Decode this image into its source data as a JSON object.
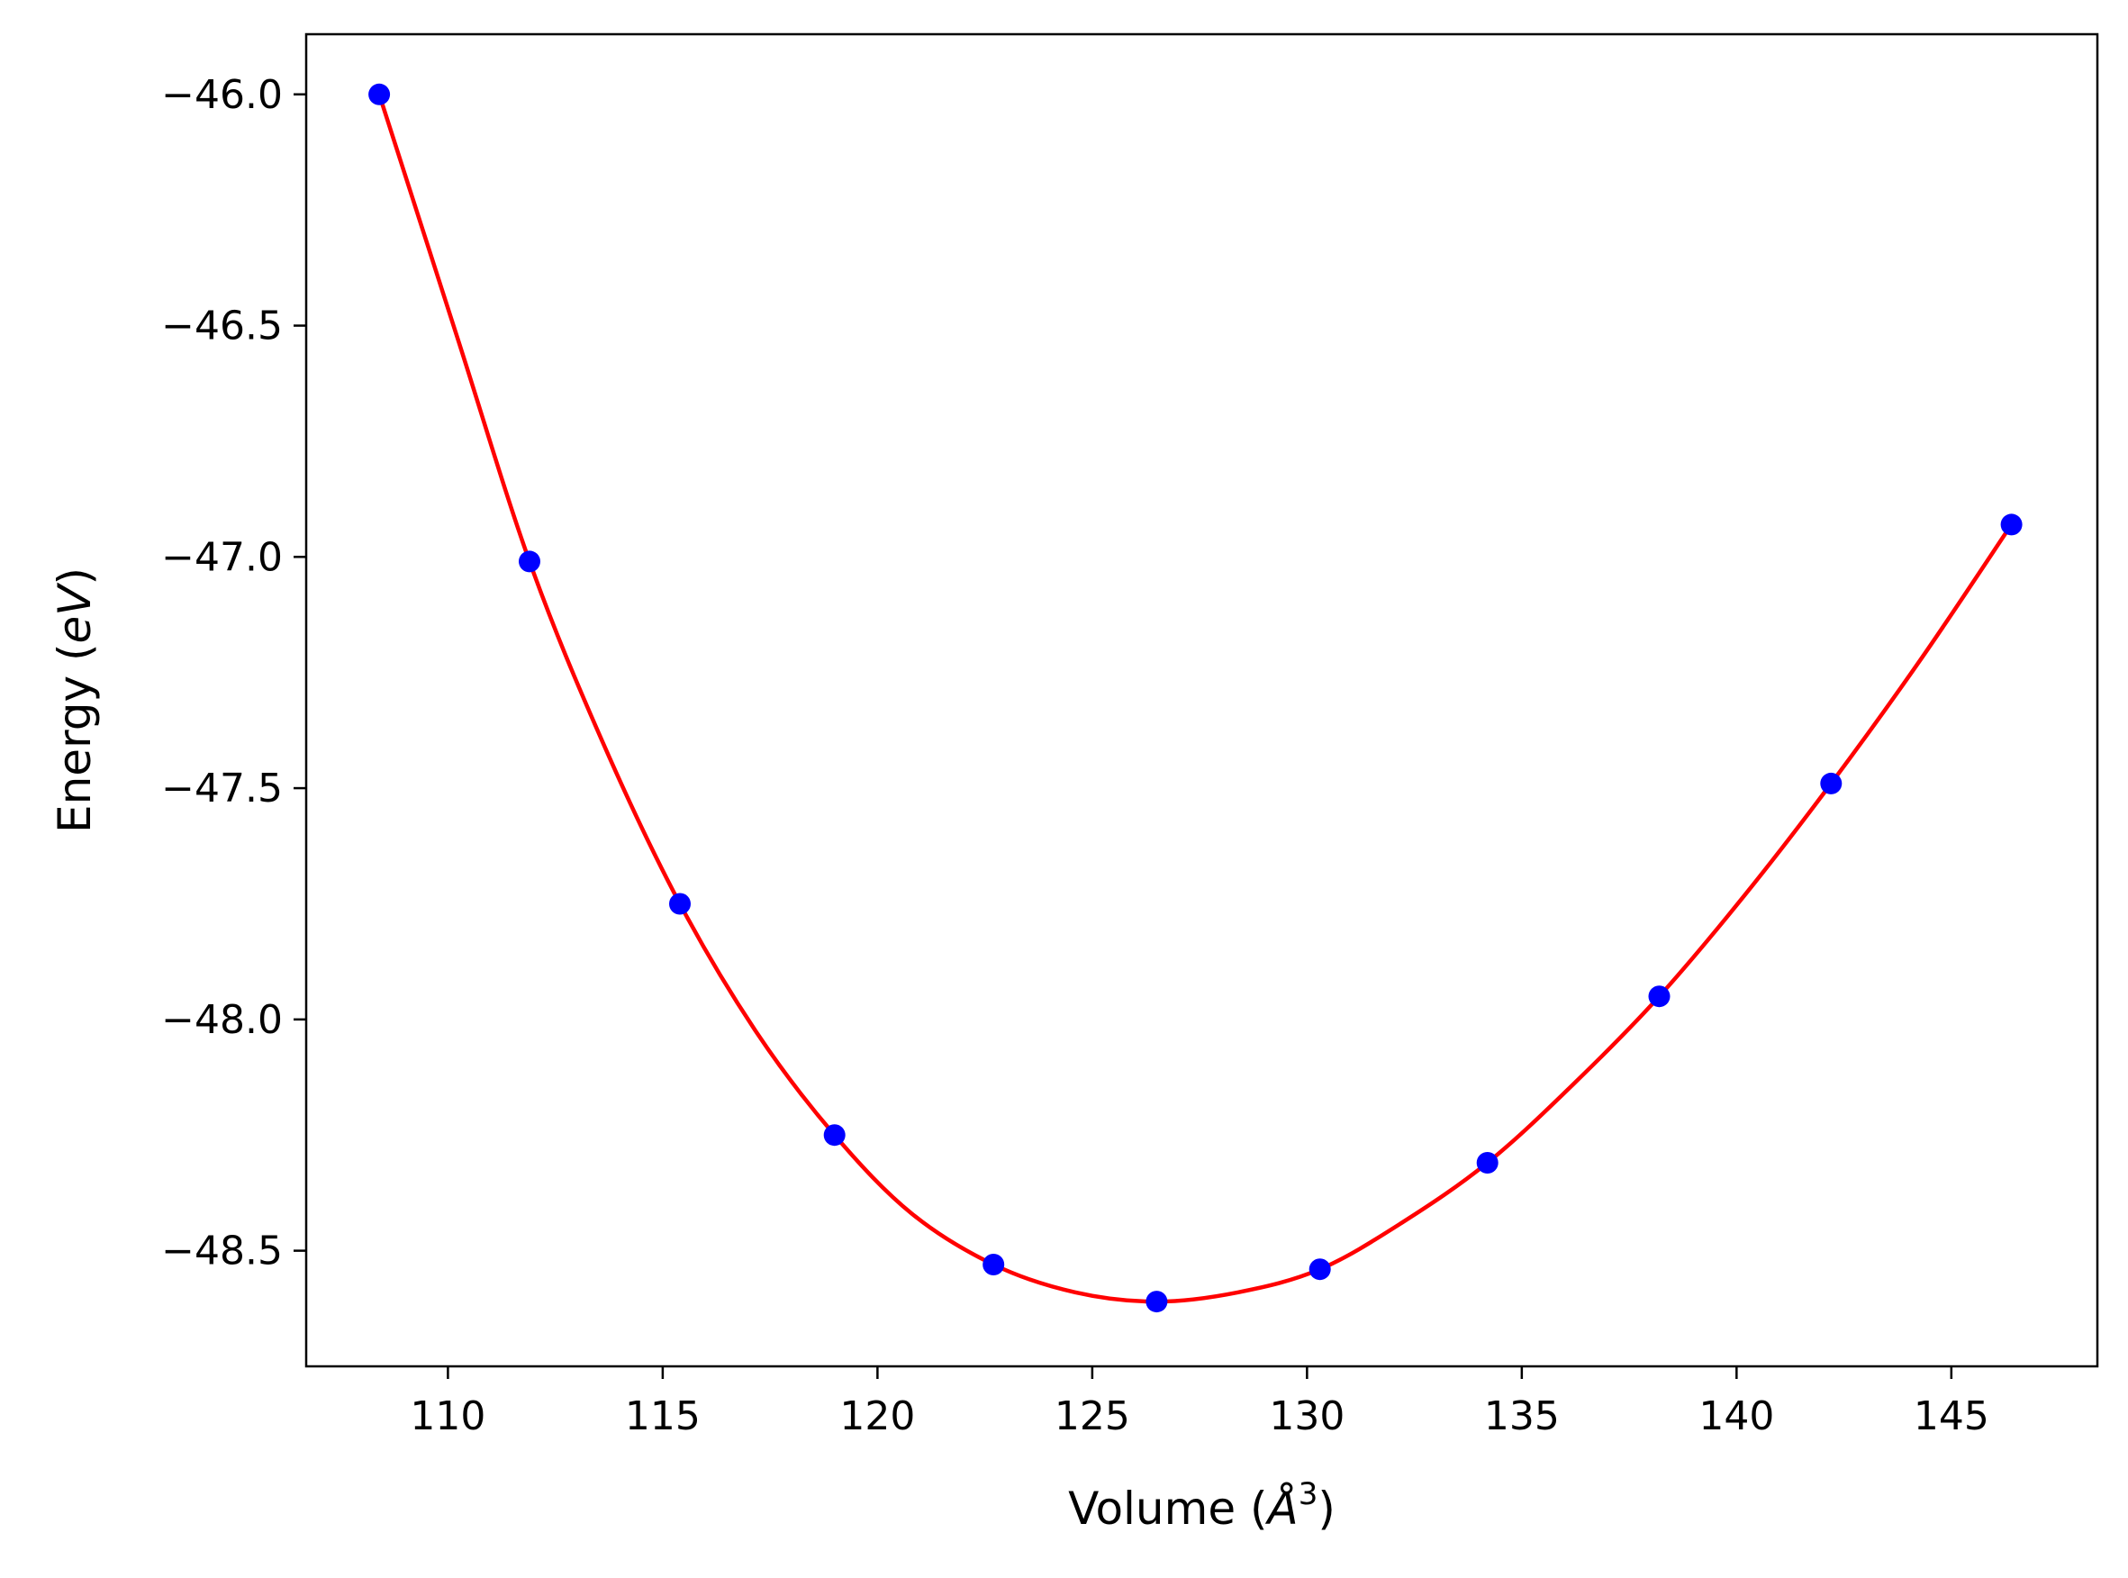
{
  "chart_data": {
    "type": "scatter",
    "title": "",
    "xlabel": {
      "prefix": "Volume (",
      "symbol": "Å",
      "superscript": "3",
      "suffix": ")"
    },
    "ylabel": {
      "prefix": "Energy (",
      "italic": "eV",
      "suffix": ")"
    },
    "xlim": [
      106.7,
      148.4
    ],
    "ylim": [
      -48.75,
      -45.87
    ],
    "xticks": [
      110,
      115,
      120,
      125,
      130,
      135,
      140,
      145
    ],
    "xtick_labels": [
      "110",
      "115",
      "120",
      "125",
      "130",
      "135",
      "140",
      "145"
    ],
    "yticks": [
      -46.0,
      -46.5,
      -47.0,
      -47.5,
      -48.0,
      -48.5
    ],
    "ytick_labels": [
      "−46.0",
      "−46.5",
      "−47.0",
      "−47.5",
      "−48.0",
      "−48.5"
    ],
    "grid": false,
    "legend": "none",
    "series": [
      {
        "kind": "points",
        "color": "#0000ff",
        "x": [
          108.4,
          111.9,
          115.4,
          119.0,
          122.7,
          126.5,
          130.3,
          134.2,
          138.2,
          142.2,
          146.4
        ],
        "y": [
          -46.0,
          -47.01,
          -47.75,
          -48.25,
          -48.53,
          -48.61,
          -48.54,
          -48.31,
          -47.95,
          -47.49,
          -46.93
        ]
      },
      {
        "kind": "fit",
        "color": "#ff0000",
        "x": [
          108.4,
          110.2,
          111.9,
          113.6,
          115.4,
          117.2,
          119.0,
          120.8,
          122.7,
          124.6,
          126.5,
          128.4,
          130.3,
          132.2,
          134.2,
          136.2,
          138.2,
          140.2,
          142.2,
          144.3,
          146.4
        ],
        "y": [
          -46.0,
          -46.52,
          -47.01,
          -47.4,
          -47.75,
          -48.03,
          -48.25,
          -48.42,
          -48.53,
          -48.59,
          -48.61,
          -48.59,
          -48.54,
          -48.44,
          -48.31,
          -48.14,
          -47.95,
          -47.73,
          -47.49,
          -47.22,
          -46.93
        ]
      }
    ]
  }
}
